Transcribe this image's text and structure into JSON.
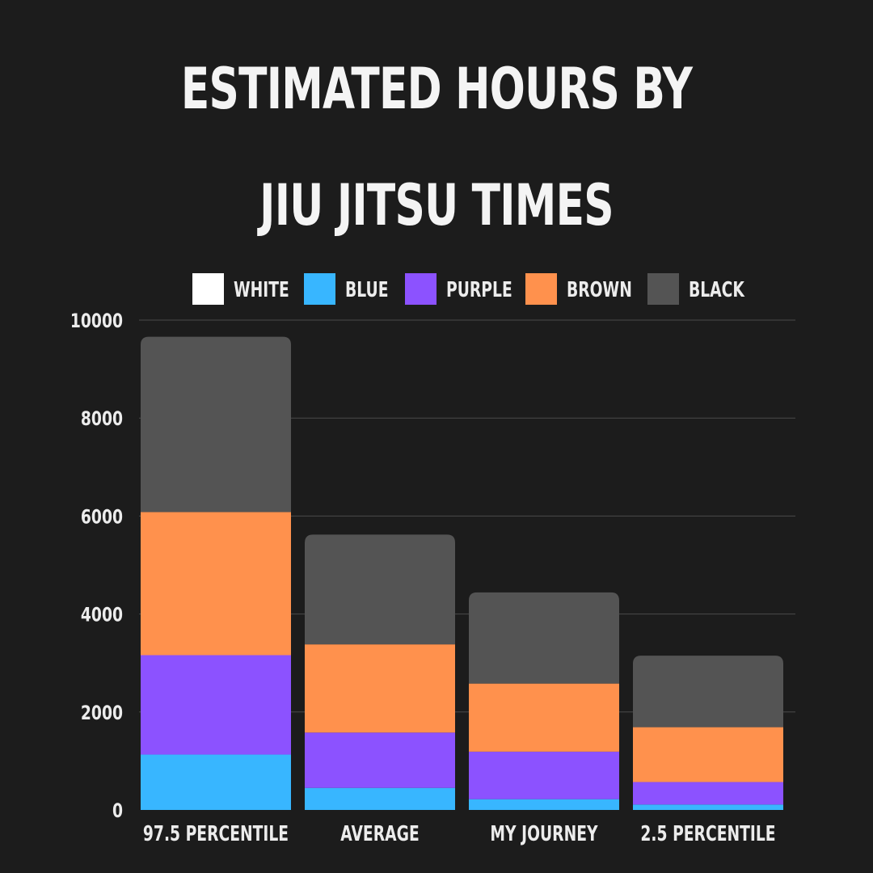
{
  "title_lines": [
    "ESTIMATED HOURS BY",
    "JIU JITSU TIMES"
  ],
  "chart_data": {
    "type": "bar",
    "stacked": true,
    "categories": [
      "97.5 PERCENTILE",
      "AVERAGE",
      "MY JOURNEY",
      "2.5 PERCENTILE"
    ],
    "series": [
      {
        "name": "WHITE",
        "color": "#ffffff",
        "values": [
          0,
          0,
          0,
          0
        ]
      },
      {
        "name": "BLUE",
        "color": "#38b6ff",
        "values": [
          1130,
          450,
          220,
          110
        ]
      },
      {
        "name": "PURPLE",
        "color": "#8c52ff",
        "values": [
          2030,
          1130,
          970,
          460
        ]
      },
      {
        "name": "BROWN",
        "color": "#ff914d",
        "values": [
          2920,
          1800,
          1390,
          1120
        ]
      },
      {
        "name": "BLACK",
        "color": "#545454",
        "values": [
          3580,
          2240,
          1860,
          1460
        ]
      }
    ],
    "yticks": [
      0,
      2000,
      4000,
      6000,
      8000,
      10000
    ],
    "ylim": [
      0,
      10000
    ],
    "grid": true,
    "legend_position": "top"
  }
}
